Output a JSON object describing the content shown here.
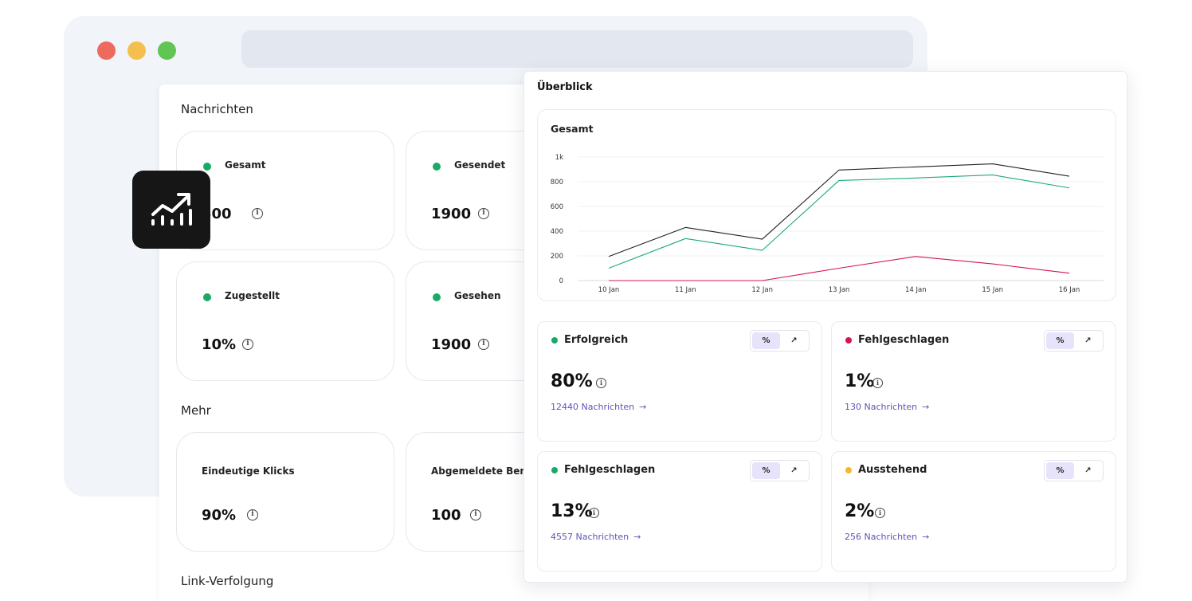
{
  "colors": {
    "green": "#1aaa66",
    "red": "#d4145a",
    "amber": "#f5b731",
    "link": "#5b55b8"
  },
  "window_controls": [
    {
      "name": "close",
      "color": "#ec6a5e"
    },
    {
      "name": "minimize",
      "color": "#f5bf4f"
    },
    {
      "name": "maximize",
      "color": "#61c554"
    }
  ],
  "nachrichten": {
    "title": "Nachrichten",
    "cards": [
      {
        "label": "Gesamt",
        "value": "500"
      },
      {
        "label": "Gesendet",
        "value": "1900"
      },
      {
        "label": "Zugestellt",
        "value": "10%"
      },
      {
        "label": "Gesehen",
        "value": "1900"
      }
    ]
  },
  "mehr": {
    "title": "Mehr",
    "cards": [
      {
        "label": "Eindeutige Klicks",
        "value": "90%"
      },
      {
        "label": "Abgemeldete Benu",
        "value": "100"
      }
    ]
  },
  "link_tracking": {
    "title": "Link-Verfolgung"
  },
  "app_icon": {
    "icon": "trending-chart-icon"
  },
  "overview": {
    "title": "Überblick",
    "chart_title": "Gesamt",
    "metrics": [
      {
        "label": "Erfolgreich",
        "dot_color": "#1aaa66",
        "value": "80%",
        "link": "12440 Nachrichten",
        "toggle": [
          "%",
          "↗"
        ]
      },
      {
        "label": "Fehlgeschlagen",
        "dot_color": "#d4145a",
        "value": "1%",
        "link": "130 Nachrichten",
        "toggle": [
          "%",
          "↗"
        ]
      },
      {
        "label": "Fehlgeschlagen",
        "dot_color": "#1aaa66",
        "value": "13%",
        "link": "4557 Nachrichten",
        "toggle": [
          "%",
          "↗"
        ]
      },
      {
        "label": "Ausstehend",
        "dot_color": "#f5b731",
        "value": "2%",
        "link": "256 Nachrichten",
        "toggle": [
          "%",
          "↗"
        ]
      }
    ],
    "link_arrow": "→"
  },
  "chart_data": {
    "type": "line",
    "title": "Gesamt",
    "x": [
      "10 Jan",
      "11 Jan",
      "12 Jan",
      "13 Jan",
      "14 Jan",
      "15 Jan",
      "16 Jan"
    ],
    "ylim": [
      0,
      1000
    ],
    "yticks": [
      "0",
      "200",
      "400",
      "600",
      "800",
      "1k"
    ],
    "grid": true,
    "series": [
      {
        "color": "#222222",
        "values": [
          195,
          430,
          335,
          895,
          920,
          945,
          845
        ]
      },
      {
        "color": "#1aaa77",
        "values": [
          100,
          340,
          245,
          810,
          830,
          855,
          750
        ]
      },
      {
        "color": "#d4145a",
        "values": [
          0,
          0,
          0,
          100,
          195,
          135,
          60
        ]
      }
    ]
  }
}
